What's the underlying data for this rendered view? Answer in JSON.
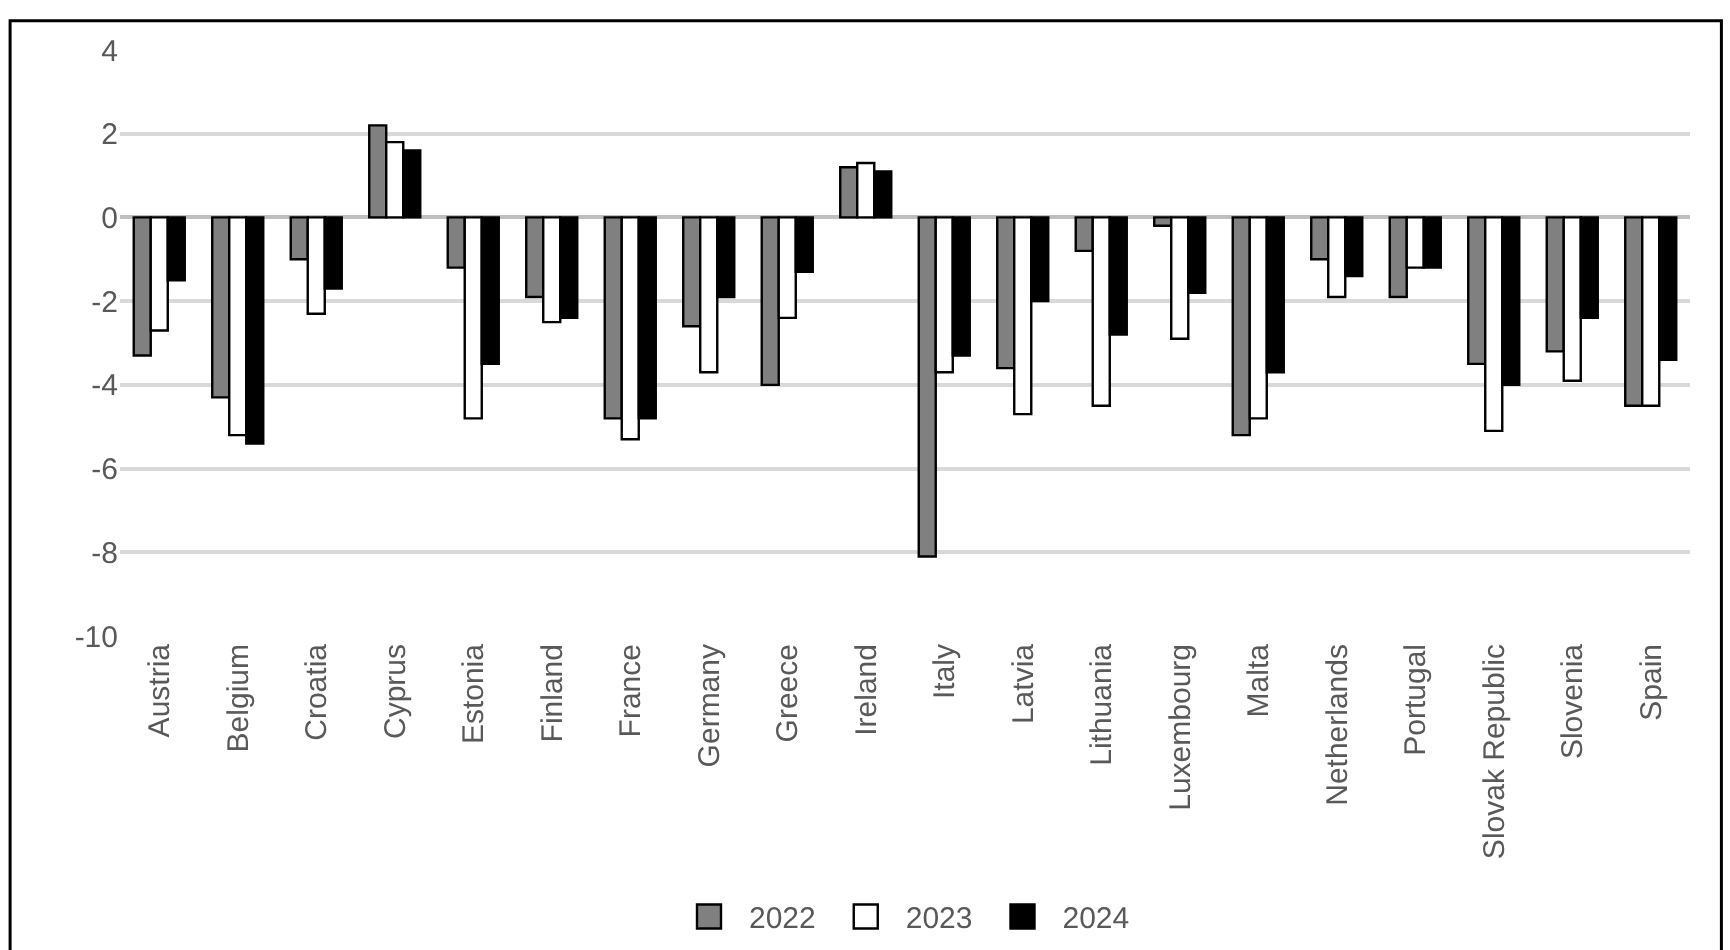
{
  "chart_data": {
    "type": "bar",
    "categories": [
      "Austria",
      "Belgium",
      "Croatia",
      "Cyprus",
      "Estonia",
      "Finland",
      "France",
      "Germany",
      "Greece",
      "Ireland",
      "Italy",
      "Latvia",
      "Lithuania",
      "Luxembourg",
      "Malta",
      "Netherlands",
      "Portugal",
      "Slovak Republic",
      "Slovenia",
      "Spain"
    ],
    "series": [
      {
        "name": "2022",
        "color": "#808080",
        "values": [
          -3.3,
          -4.3,
          -1.0,
          2.2,
          -1.2,
          -1.9,
          -4.8,
          -2.6,
          -4.0,
          1.2,
          -8.1,
          -3.6,
          -0.8,
          -0.2,
          -5.2,
          -1.0,
          -1.9,
          -3.5,
          -3.2,
          -4.5
        ]
      },
      {
        "name": "2023",
        "color": "#ffffff",
        "values": [
          -2.7,
          -5.2,
          -2.3,
          1.8,
          -4.8,
          -2.5,
          -5.3,
          -3.7,
          -2.4,
          1.3,
          -3.7,
          -4.7,
          -4.5,
          -2.9,
          -4.8,
          -1.9,
          -1.2,
          -5.1,
          -3.9,
          -4.5
        ]
      },
      {
        "name": "2024",
        "color": "#000000",
        "values": [
          -1.5,
          -5.4,
          -1.7,
          1.6,
          -3.5,
          -2.4,
          -4.8,
          -1.9,
          -1.3,
          1.1,
          -3.3,
          -2.0,
          -2.8,
          -1.8,
          -3.7,
          -1.4,
          -1.2,
          -4.0,
          -2.4,
          -3.4
        ]
      }
    ],
    "ylim": [
      -10,
      4
    ],
    "yticks": [
      -10,
      -8,
      -6,
      -4,
      -2,
      0,
      2,
      4
    ],
    "grid": "y",
    "legend": "bottom"
  }
}
